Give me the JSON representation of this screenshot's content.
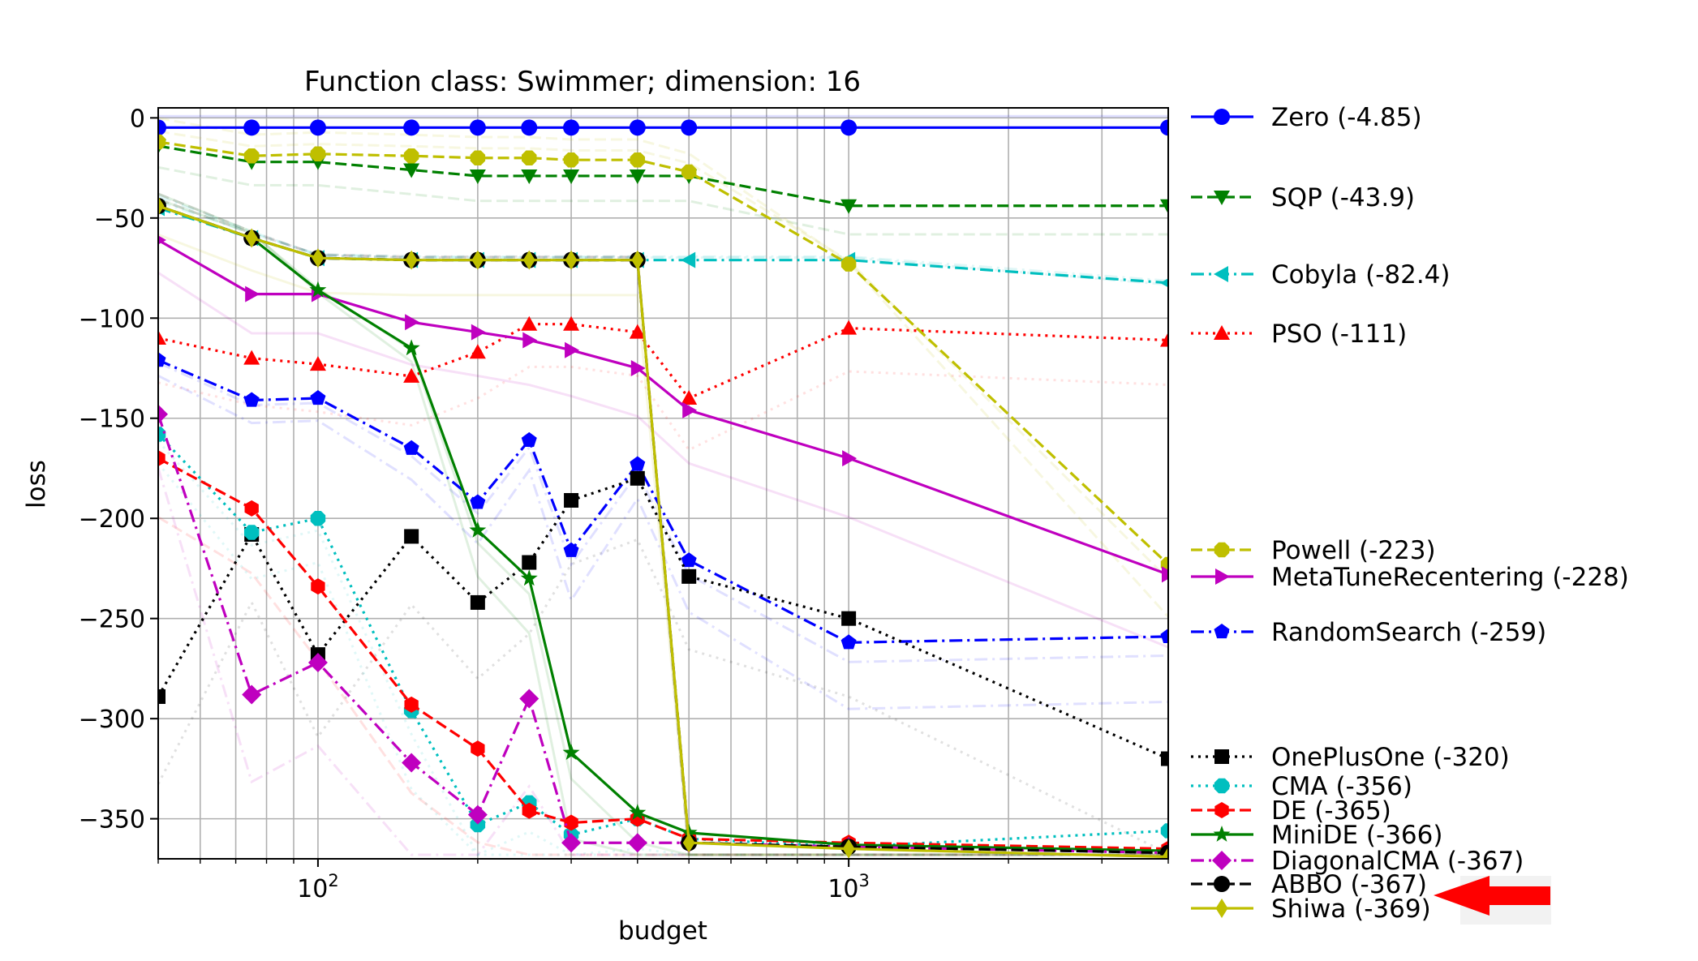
{
  "chart_data": {
    "type": "line",
    "title": "Function class: Swimmer; dimension: 16",
    "xlabel": "budget",
    "ylabel": "loss",
    "xscale": "log",
    "xlim": [
      50,
      4000
    ],
    "ylim": [
      -370,
      5
    ],
    "grid": true,
    "legend_placement": "right (outside plot)",
    "x_tick_labels": [
      "10^2",
      "10^3"
    ],
    "y_ticks": [
      0,
      -50,
      -100,
      -150,
      -200,
      -250,
      -300,
      -350
    ],
    "y_tick_labels": [
      "0",
      "−50",
      "−100",
      "−150",
      "−200",
      "−250",
      "−300",
      "−350"
    ],
    "x": [
      50,
      75,
      100,
      150,
      200,
      250,
      300,
      400,
      500,
      1000,
      4000
    ],
    "series": [
      {
        "name": "Zero (-4.85)",
        "color": "#0000ff",
        "marker": "circle",
        "dash": "solid",
        "values": [
          -4.85,
          -4.85,
          -4.85,
          -4.85,
          -4.85,
          -4.85,
          -4.85,
          -4.85,
          -4.85,
          -4.85,
          -4.85
        ]
      },
      {
        "name": "SQP (-43.9)",
        "color": "#008000",
        "marker": "triangle-down",
        "dash": "dashed",
        "values": [
          -14,
          -22,
          -22,
          -26,
          -29,
          -29,
          -29,
          -29,
          -29,
          -43.9,
          -43.9
        ]
      },
      {
        "name": "Cobyla (-82.4)",
        "color": "#00bfbf",
        "marker": "triangle-left",
        "dash": "dashdot",
        "values": [
          -45,
          -60,
          -70,
          -71,
          -71,
          -71,
          -71,
          -71,
          -71,
          -71,
          -82.4
        ]
      },
      {
        "name": "PSO (-111)",
        "color": "#ff0000",
        "marker": "triangle-up",
        "dash": "dotted",
        "values": [
          -110,
          -120,
          -123,
          -129,
          -117,
          -103,
          -103,
          -107,
          -140,
          -105,
          -111
        ]
      },
      {
        "name": "Powell (-223)",
        "color": "#bfbf00",
        "marker": "octagon",
        "dash": "dashed",
        "values": [
          -12,
          -19,
          -18,
          -19,
          -20,
          -20,
          -21,
          -21,
          -27,
          -73,
          -223
        ]
      },
      {
        "name": "MetaTuneRecentering (-228)",
        "color": "#bf00bf",
        "marker": "triangle-right",
        "dash": "solid",
        "values": [
          -61,
          -88,
          -88,
          -102,
          -107,
          -111,
          -116,
          -125,
          -146,
          -170,
          -228
        ]
      },
      {
        "name": "RandomSearch (-259)",
        "color": "#0000ff",
        "marker": "pentagon",
        "dash": "dashdot",
        "values": [
          -121,
          -141,
          -140,
          -165,
          -192,
          -161,
          -216,
          -173,
          -221,
          -262,
          -259
        ]
      },
      {
        "name": "OnePlusOne (-320)",
        "color": "#000000",
        "marker": "square",
        "dash": "dotted",
        "values": [
          -289,
          -208,
          -268,
          -209,
          -242,
          -222,
          -191,
          -180,
          -229,
          -250,
          -320
        ]
      },
      {
        "name": "CMA (-356)",
        "color": "#00bfbf",
        "marker": "octagon",
        "dash": "dotted",
        "values": [
          -158,
          -207,
          -200,
          -296,
          -353,
          -342,
          -358,
          -350,
          -360,
          -364,
          -356
        ]
      },
      {
        "name": "DE (-365)",
        "color": "#ff0000",
        "marker": "hexagon",
        "dash": "dashed",
        "values": [
          -170,
          -195,
          -234,
          -293,
          -315,
          -346,
          -352,
          -350,
          -360,
          -362,
          -365
        ]
      },
      {
        "name": "MiniDE (-366)",
        "color": "#008000",
        "marker": "star",
        "dash": "solid",
        "values": [
          -44,
          -60,
          -86,
          -115,
          -206,
          -230,
          -317,
          -347,
          -357,
          -363,
          -366
        ]
      },
      {
        "name": "DiagonalCMA (-367)",
        "color": "#bf00bf",
        "marker": "diamond",
        "dash": "dashdot",
        "values": [
          -148,
          -288,
          -272,
          -322,
          -348,
          -290,
          -362,
          -362,
          -362,
          -364,
          -367
        ]
      },
      {
        "name": "ABBO (-367)",
        "color": "#000000",
        "marker": "circle",
        "dash": "dashed",
        "values": [
          -44,
          -60,
          -70,
          -71,
          -71,
          -71,
          -71,
          -71,
          -362,
          -364,
          -367
        ]
      },
      {
        "name": "Shiwa (-369)",
        "color": "#bfbf00",
        "marker": "thin-diamond",
        "dash": "solid",
        "values": [
          -44,
          -60,
          -70,
          -71,
          -71,
          -71,
          -71,
          -71,
          -362,
          -365,
          -369
        ]
      }
    ]
  }
}
